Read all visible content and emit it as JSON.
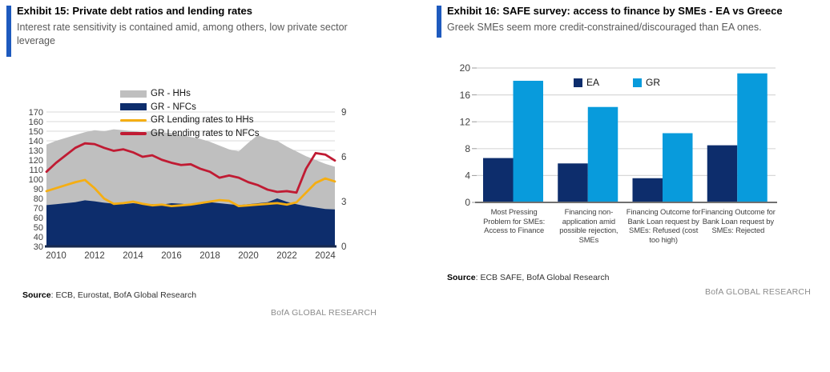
{
  "left_panel": {
    "title": "Exhibit 15: Private debt ratios and lending rates",
    "subtitle": "Interest rate sensitivity is contained amid, among others, low private sector leverage",
    "source_label": "Source",
    "source_rest": ": ECB, Eurostat, BofA Global Research",
    "brand": "BofA GLOBAL RESEARCH"
  },
  "right_panel": {
    "title": "Exhibit 16: SAFE survey: access to finance by SMEs - EA vs Greece",
    "subtitle": "Greek SMEs seem more credit-constrained/discouraged than EA ones.",
    "source_label": "Source",
    "source_rest": ": ECB SAFE, BofA Global Research",
    "brand": "BofA GLOBAL RESEARCH"
  },
  "colors": {
    "accent_blue": "#1E5ABE",
    "navy": "#0D2D6C",
    "gray_area": "#BFBFBF",
    "yellow": "#F5AE13",
    "red": "#C01B33",
    "light_blue": "#089BDC",
    "gridline": "#D8D8D8",
    "axis_text": "#404040",
    "left_axis_line": "#17294E",
    "right_axis_line": "#707070"
  },
  "chart_data": [
    {
      "type": "area",
      "title": "Private debt ratios and lending rates",
      "x_range": [
        2009.5,
        2024.5
      ],
      "x": [
        2009.5,
        2010,
        2010.5,
        2011,
        2011.5,
        2012,
        2012.5,
        2013,
        2013.5,
        2014,
        2014.5,
        2015,
        2015.5,
        2016,
        2016.5,
        2017,
        2017.5,
        2018,
        2018.5,
        2019,
        2019.5,
        2020,
        2020.5,
        2021,
        2021.5,
        2022,
        2022.5,
        2023,
        2023.5,
        2024,
        2024.5
      ],
      "x_ticks": [
        2010,
        2012,
        2014,
        2016,
        2018,
        2020,
        2022,
        2024
      ],
      "left_axis": {
        "min": 30,
        "max": 170,
        "step": 10
      },
      "right_axis": {
        "min": 0,
        "max": 9,
        "labels": [
          0,
          3,
          6,
          9
        ]
      },
      "grid": true,
      "legend_position": "top-center",
      "series": [
        {
          "name": "GR - HHs",
          "kind": "area",
          "axis": "left",
          "color": "#BFBFBF",
          "note": "plotted as top of HH+NFC stack",
          "values": [
            136,
            140,
            143,
            146,
            149,
            151,
            150,
            152,
            151,
            150,
            149,
            150,
            149,
            148,
            146,
            144,
            142,
            139,
            135,
            131,
            129,
            138,
            146,
            142,
            140,
            134,
            129,
            124,
            120,
            116,
            113
          ]
        },
        {
          "name": "GR - NFCs",
          "kind": "area",
          "axis": "left",
          "color": "#0D2D6C",
          "values": [
            73,
            74,
            75,
            76,
            78,
            77,
            75.5,
            74.5,
            74,
            75,
            74,
            74,
            73.5,
            75,
            74.5,
            73.5,
            74,
            76,
            75,
            74,
            73,
            74,
            75,
            76,
            80,
            76.5,
            74,
            72,
            70.5,
            69,
            68.5
          ]
        },
        {
          "name": "GR Lending rates to HHs",
          "kind": "line",
          "axis": "right",
          "color": "#F5AE13",
          "values": [
            3.7,
            3.9,
            4.1,
            4.3,
            4.45,
            3.9,
            3.2,
            2.85,
            2.9,
            3.0,
            2.85,
            2.75,
            2.8,
            2.7,
            2.75,
            2.8,
            2.9,
            3.0,
            3.1,
            3.05,
            2.7,
            2.75,
            2.8,
            2.85,
            2.9,
            2.8,
            2.95,
            3.6,
            4.25,
            4.55,
            4.35
          ]
        },
        {
          "name": "GR Lending rates to NFCs",
          "kind": "line",
          "axis": "right",
          "color": "#C01B33",
          "values": [
            5.0,
            5.6,
            6.1,
            6.6,
            6.9,
            6.85,
            6.6,
            6.4,
            6.5,
            6.3,
            6.0,
            6.1,
            5.8,
            5.6,
            5.45,
            5.5,
            5.2,
            5.0,
            4.6,
            4.75,
            4.6,
            4.3,
            4.1,
            3.8,
            3.65,
            3.7,
            3.6,
            5.2,
            6.25,
            6.15,
            5.75
          ]
        }
      ]
    },
    {
      "type": "bar",
      "title": "SAFE survey: access to finance by SMEs - EA vs Greece",
      "categories": [
        "Most Pressing Problem for SMEs: Access to Finance",
        "Financing non-application amid possible rejection, SMEs",
        "Financing Outcome for Bank Loan request by SMEs: Refused (cost too high)",
        "Financing Outcome for Bank Loan request by SMEs: Rejected"
      ],
      "series": [
        {
          "name": "EA",
          "color": "#0D2D6C",
          "values": [
            6.6,
            5.8,
            3.6,
            8.5
          ]
        },
        {
          "name": "GR",
          "color": "#089BDC",
          "values": [
            18.1,
            14.2,
            10.3,
            19.2
          ]
        }
      ],
      "ylim": [
        0,
        20
      ],
      "ystep": 4,
      "grid": true,
      "legend_position": "top-center"
    }
  ]
}
